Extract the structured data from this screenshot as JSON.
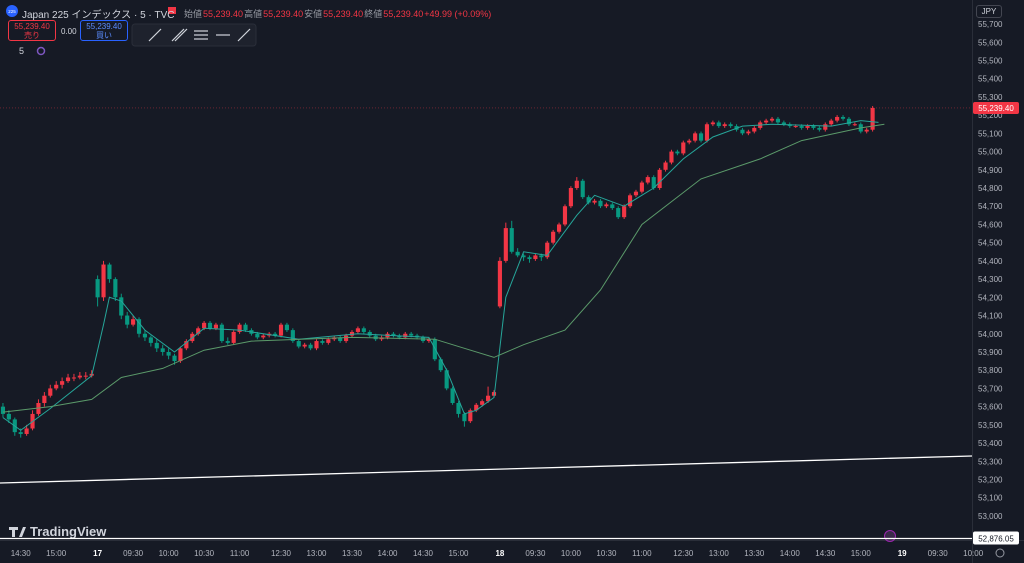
{
  "header": {
    "logo": "225",
    "symbol": "Japan 225 インデックス · 5 · TVC",
    "ohlc": [
      {
        "label": "始値",
        "value": "55,239.40"
      },
      {
        "label": "高値",
        "value": "55,239.40"
      },
      {
        "label": "安値",
        "value": "55,239.40"
      },
      {
        "label": "終値",
        "value": "55,239.40"
      }
    ],
    "change": "+49.99 (+0.09%)",
    "indicator": "5",
    "currency": "JPY",
    "brand": "TradingView"
  },
  "trade": {
    "sell_price": "55,239.40",
    "sell_label": "売り",
    "spread": "0.00",
    "buy_price": "55,239.40",
    "buy_label": "買い"
  },
  "chart_data": {
    "type": "candlestick",
    "xlim": [
      -0.5,
      163.8
    ],
    "ylim": [
      52868,
      55832
    ],
    "xticks": [
      {
        "value": 3,
        "label": "14:30"
      },
      {
        "value": 9,
        "label": "15:00"
      },
      {
        "value": 16,
        "label": "17"
      },
      {
        "value": 22,
        "label": "09:30"
      },
      {
        "value": 28,
        "label": "10:00"
      },
      {
        "value": 34,
        "label": "10:30"
      },
      {
        "value": 40,
        "label": "11:00"
      },
      {
        "value": 47,
        "label": "12:30"
      },
      {
        "value": 53,
        "label": "13:00"
      },
      {
        "value": 59,
        "label": "13:30"
      },
      {
        "value": 65,
        "label": "14:00"
      },
      {
        "value": 71,
        "label": "14:30"
      },
      {
        "value": 77,
        "label": "15:00"
      },
      {
        "value": 84,
        "label": "18"
      },
      {
        "value": 90,
        "label": "09:30"
      },
      {
        "value": 96,
        "label": "10:00"
      },
      {
        "value": 102,
        "label": "10:30"
      },
      {
        "value": 108,
        "label": "11:00"
      },
      {
        "value": 115,
        "label": "12:30"
      },
      {
        "value": 121,
        "label": "13:00"
      },
      {
        "value": 127,
        "label": "13:30"
      },
      {
        "value": 133,
        "label": "14:00"
      },
      {
        "value": 139,
        "label": "14:30"
      },
      {
        "value": 145,
        "label": "15:00"
      },
      {
        "value": 152,
        "label": "19"
      },
      {
        "value": 158,
        "label": "09:30"
      },
      {
        "value": 164,
        "label": "10:00"
      }
    ],
    "yticks": [
      {
        "value": 53000,
        "label": "53,000"
      },
      {
        "value": 53100,
        "label": "53,100"
      },
      {
        "value": 53200,
        "label": "53,200"
      },
      {
        "value": 53300,
        "label": "53,300"
      },
      {
        "value": 53400,
        "label": "53,400"
      },
      {
        "value": 53500,
        "label": "53,500"
      },
      {
        "value": 53600,
        "label": "53,600"
      },
      {
        "value": 53700,
        "label": "53,700"
      },
      {
        "value": 53800,
        "label": "53,800"
      },
      {
        "value": 53900,
        "label": "53,900"
      },
      {
        "value": 54000,
        "label": "54,000"
      },
      {
        "value": 54100,
        "label": "54,100"
      },
      {
        "value": 54200,
        "label": "54,200"
      },
      {
        "value": 54300,
        "label": "54,300"
      },
      {
        "value": 54400,
        "label": "54,400"
      },
      {
        "value": 54500,
        "label": "54,500"
      },
      {
        "value": 54600,
        "label": "54,600"
      },
      {
        "value": 54700,
        "label": "54,700"
      },
      {
        "value": 54800,
        "label": "54,800"
      },
      {
        "value": 54900,
        "label": "54,900"
      },
      {
        "value": 55000,
        "label": "55,000"
      },
      {
        "value": 55100,
        "label": "55,100"
      },
      {
        "value": 55200,
        "label": "55,200"
      },
      {
        "value": 55300,
        "label": "55,300"
      },
      {
        "value": 55400,
        "label": "55,400"
      },
      {
        "value": 55500,
        "label": "55,500"
      },
      {
        "value": 55600,
        "label": "55,600"
      },
      {
        "value": 55700,
        "label": "55,700"
      }
    ],
    "up_color": "#f23645",
    "down_color": "#089981",
    "candles": [
      [
        53600,
        53620,
        53540,
        53560
      ],
      [
        53560,
        53580,
        53510,
        53530
      ],
      [
        53530,
        53540,
        53440,
        53460
      ],
      [
        53460,
        53480,
        53430,
        53450
      ],
      [
        53450,
        53500,
        53440,
        53480
      ],
      [
        53480,
        53580,
        53470,
        53560
      ],
      [
        53560,
        53640,
        53550,
        53620
      ],
      [
        53620,
        53680,
        53600,
        53660
      ],
      [
        53660,
        53720,
        53650,
        53700
      ],
      [
        53700,
        53740,
        53690,
        53720
      ],
      [
        53720,
        53760,
        53700,
        53740
      ],
      [
        53740,
        53780,
        53730,
        53760
      ],
      [
        53760,
        53780,
        53740,
        53760
      ],
      [
        53760,
        53790,
        53750,
        53770
      ],
      [
        53770,
        53790,
        53750,
        53770
      ],
      [
        53770,
        53800,
        53760,
        53780
      ],
      [
        54300,
        54320,
        54150,
        54200
      ],
      [
        54200,
        54400,
        54180,
        54380
      ],
      [
        54380,
        54390,
        54280,
        54300
      ],
      [
        54300,
        54310,
        54180,
        54200
      ],
      [
        54200,
        54220,
        54080,
        54100
      ],
      [
        54100,
        54120,
        54030,
        54050
      ],
      [
        54050,
        54100,
        54040,
        54080
      ],
      [
        54080,
        54090,
        53980,
        54000
      ],
      [
        54000,
        54020,
        53960,
        53980
      ],
      [
        53980,
        53990,
        53930,
        53950
      ],
      [
        53950,
        53970,
        53900,
        53920
      ],
      [
        53920,
        53940,
        53880,
        53900
      ],
      [
        53900,
        53920,
        53860,
        53880
      ],
      [
        53880,
        53890,
        53830,
        53850
      ],
      [
        53850,
        53930,
        53840,
        53920
      ],
      [
        53920,
        53970,
        53910,
        53960
      ],
      [
        53960,
        54010,
        53950,
        54000
      ],
      [
        54000,
        54040,
        53990,
        54030
      ],
      [
        54030,
        54070,
        54020,
        54060
      ],
      [
        54060,
        54070,
        54020,
        54030
      ],
      [
        54030,
        54060,
        54020,
        54050
      ],
      [
        54050,
        54060,
        53950,
        53960
      ],
      [
        53960,
        53980,
        53940,
        53950
      ],
      [
        53950,
        54020,
        53940,
        54010
      ],
      [
        54010,
        54060,
        54000,
        54050
      ],
      [
        54050,
        54060,
        54010,
        54020
      ],
      [
        54020,
        54030,
        53990,
        54000
      ],
      [
        54000,
        54010,
        53970,
        53980
      ],
      [
        53980,
        54000,
        53970,
        53990
      ],
      [
        53990,
        54010,
        53980,
        54000
      ],
      [
        54000,
        54010,
        53980,
        53990
      ],
      [
        53990,
        54060,
        53980,
        54050
      ],
      [
        54050,
        54060,
        54010,
        54020
      ],
      [
        54020,
        54030,
        53950,
        53960
      ],
      [
        53960,
        53970,
        53920,
        53930
      ],
      [
        53930,
        53950,
        53920,
        53940
      ],
      [
        53940,
        53950,
        53910,
        53920
      ],
      [
        53920,
        53970,
        53910,
        53960
      ],
      [
        53960,
        53970,
        53940,
        53950
      ],
      [
        53950,
        53980,
        53940,
        53970
      ],
      [
        53970,
        53990,
        53960,
        53980
      ],
      [
        53980,
        53990,
        53950,
        53960
      ],
      [
        53960,
        54000,
        53950,
        53990
      ],
      [
        53990,
        54020,
        53980,
        54010
      ],
      [
        54010,
        54040,
        54000,
        54030
      ],
      [
        54030,
        54040,
        54000,
        54010
      ],
      [
        54010,
        54020,
        53980,
        53990
      ],
      [
        53990,
        54000,
        53960,
        53970
      ],
      [
        53970,
        53990,
        53960,
        53980
      ],
      [
        53980,
        54010,
        53970,
        54000
      ],
      [
        54000,
        54010,
        53980,
        53990
      ],
      [
        53990,
        54000,
        53970,
        53980
      ],
      [
        53980,
        54010,
        53970,
        54000
      ],
      [
        54000,
        54010,
        53980,
        53990
      ],
      [
        53990,
        54000,
        53970,
        53980
      ],
      [
        53980,
        53990,
        53950,
        53960
      ],
      [
        53960,
        53980,
        53950,
        53970
      ],
      [
        53970,
        53980,
        53850,
        53860
      ],
      [
        53860,
        53870,
        53790,
        53800
      ],
      [
        53800,
        53810,
        53690,
        53700
      ],
      [
        53700,
        53710,
        53610,
        53620
      ],
      [
        53620,
        53630,
        53540,
        53560
      ],
      [
        53560,
        53570,
        53490,
        53520
      ],
      [
        53520,
        53590,
        53510,
        53580
      ],
      [
        53580,
        53620,
        53570,
        53610
      ],
      [
        53610,
        53640,
        53600,
        53630
      ],
      [
        53630,
        53710,
        53620,
        53660
      ],
      [
        53660,
        53690,
        53650,
        53680
      ],
      [
        54150,
        54420,
        54140,
        54400
      ],
      [
        54400,
        54610,
        54390,
        54580
      ],
      [
        54580,
        54620,
        54440,
        54450
      ],
      [
        54450,
        54470,
        54420,
        54430
      ],
      [
        54430,
        54440,
        54400,
        54420
      ],
      [
        54420,
        54430,
        54390,
        54410
      ],
      [
        54410,
        54440,
        54400,
        54430
      ],
      [
        54430,
        54440,
        54400,
        54420
      ],
      [
        54420,
        54510,
        54410,
        54500
      ],
      [
        54500,
        54570,
        54490,
        54560
      ],
      [
        54560,
        54610,
        54550,
        54600
      ],
      [
        54600,
        54710,
        54590,
        54700
      ],
      [
        54700,
        54810,
        54690,
        54800
      ],
      [
        54800,
        54860,
        54790,
        54840
      ],
      [
        54840,
        54850,
        54740,
        54750
      ],
      [
        54750,
        54760,
        54710,
        54720
      ],
      [
        54720,
        54740,
        54710,
        54730
      ],
      [
        54730,
        54740,
        54690,
        54700
      ],
      [
        54700,
        54720,
        54690,
        54710
      ],
      [
        54710,
        54720,
        54680,
        54690
      ],
      [
        54690,
        54700,
        54630,
        54640
      ],
      [
        54640,
        54710,
        54630,
        54700
      ],
      [
        54700,
        54770,
        54690,
        54760
      ],
      [
        54760,
        54790,
        54750,
        54780
      ],
      [
        54780,
        54840,
        54770,
        54830
      ],
      [
        54830,
        54870,
        54820,
        54860
      ],
      [
        54860,
        54870,
        54790,
        54800
      ],
      [
        54800,
        54910,
        54790,
        54900
      ],
      [
        54900,
        54950,
        54890,
        54940
      ],
      [
        54940,
        55010,
        54930,
        55000
      ],
      [
        55000,
        55010,
        54980,
        54990
      ],
      [
        54990,
        55060,
        54980,
        55050
      ],
      [
        55050,
        55070,
        55040,
        55060
      ],
      [
        55060,
        55110,
        55050,
        55100
      ],
      [
        55100,
        55110,
        55050,
        55060
      ],
      [
        55060,
        55160,
        55050,
        55150
      ],
      [
        55150,
        55170,
        55140,
        55160
      ],
      [
        55160,
        55170,
        55130,
        55140
      ],
      [
        55140,
        55160,
        55130,
        55150
      ],
      [
        55150,
        55160,
        55130,
        55140
      ],
      [
        55140,
        55150,
        55110,
        55120
      ],
      [
        55120,
        55130,
        55090,
        55100
      ],
      [
        55100,
        55120,
        55090,
        55110
      ],
      [
        55110,
        55140,
        55100,
        55130
      ],
      [
        55130,
        55170,
        55120,
        55160
      ],
      [
        55160,
        55180,
        55150,
        55170
      ],
      [
        55170,
        55190,
        55160,
        55180
      ],
      [
        55180,
        55190,
        55150,
        55160
      ],
      [
        55160,
        55170,
        55140,
        55150
      ],
      [
        55150,
        55160,
        55130,
        55140
      ],
      [
        55140,
        55150,
        55130,
        55140
      ],
      [
        55140,
        55150,
        55120,
        55130
      ],
      [
        55130,
        55150,
        55120,
        55140
      ],
      [
        55140,
        55150,
        55120,
        55130
      ],
      [
        55130,
        55140,
        55110,
        55120
      ],
      [
        55120,
        55160,
        55110,
        55150
      ],
      [
        55150,
        55180,
        55140,
        55170
      ],
      [
        55170,
        55200,
        55160,
        55190
      ],
      [
        55190,
        55200,
        55170,
        55180
      ],
      [
        55180,
        55190,
        55140,
        55150
      ],
      [
        55150,
        55160,
        55140,
        55150
      ],
      [
        55150,
        55160,
        55100,
        55110
      ],
      [
        55110,
        55130,
        55100,
        55120
      ],
      [
        55120,
        55250,
        55110,
        55239.4
      ]
    ],
    "lines": [
      {
        "color": "#26a69a",
        "points": [
          [
            0,
            53540
          ],
          [
            3,
            53470
          ],
          [
            8,
            53590
          ],
          [
            15,
            53770
          ],
          [
            17,
            54050
          ],
          [
            18,
            54200
          ],
          [
            20,
            54180
          ],
          [
            24,
            54020
          ],
          [
            29,
            53900
          ],
          [
            34,
            54030
          ],
          [
            40,
            54020
          ],
          [
            50,
            53970
          ],
          [
            60,
            54000
          ],
          [
            72,
            53980
          ],
          [
            75,
            53800
          ],
          [
            78,
            53560
          ],
          [
            80,
            53580
          ],
          [
            83,
            53650
          ],
          [
            85,
            54200
          ],
          [
            88,
            54450
          ],
          [
            92,
            54430
          ],
          [
            97,
            54650
          ],
          [
            100,
            54760
          ],
          [
            105,
            54700
          ],
          [
            110,
            54800
          ],
          [
            115,
            54960
          ],
          [
            120,
            55080
          ],
          [
            125,
            55140
          ],
          [
            130,
            55150
          ],
          [
            140,
            55140
          ],
          [
            145,
            55170
          ],
          [
            148,
            55160
          ]
        ]
      },
      {
        "color": "#5b9a6a",
        "points": [
          [
            0,
            53570
          ],
          [
            8,
            53600
          ],
          [
            15,
            53640
          ],
          [
            20,
            53760
          ],
          [
            27,
            53810
          ],
          [
            34,
            53910
          ],
          [
            42,
            53960
          ],
          [
            59,
            53980
          ],
          [
            73,
            53970
          ],
          [
            78,
            53920
          ],
          [
            83,
            53870
          ],
          [
            88,
            53940
          ],
          [
            95,
            54020
          ],
          [
            101,
            54240
          ],
          [
            108,
            54600
          ],
          [
            118,
            54850
          ],
          [
            128,
            54960
          ],
          [
            135,
            55060
          ],
          [
            145,
            55130
          ],
          [
            149,
            55150
          ]
        ]
      }
    ],
    "trendline": {
      "color": "#ffffff",
      "x": [
        -0.5,
        163.8
      ],
      "y": [
        53181,
        53329
      ]
    },
    "last_price": {
      "value": 55239.4,
      "label": "55,239.40",
      "color": "#f23645"
    },
    "hline": {
      "value": 52876.05,
      "label": "52,876.05",
      "color": "#ffffff"
    }
  }
}
